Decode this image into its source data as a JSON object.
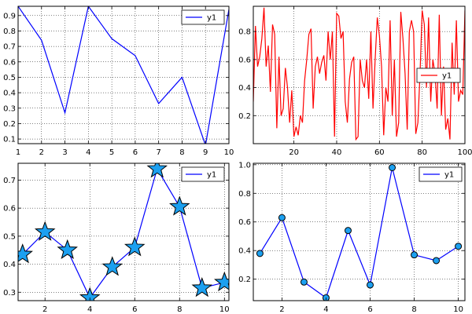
{
  "chart_data": [
    {
      "type": "line",
      "x": [
        1,
        2,
        3,
        4,
        5,
        6,
        7,
        8,
        9,
        10
      ],
      "series": [
        {
          "name": "y1",
          "color": "#0000ff",
          "marker": "none",
          "values": [
            0.96,
            0.74,
            0.27,
            0.96,
            0.75,
            0.64,
            0.33,
            0.5,
            0.06,
            0.94
          ]
        }
      ],
      "xlim": [
        1,
        10
      ],
      "ylim": [
        0.07,
        0.96
      ],
      "xticks": [
        1,
        2,
        3,
        4,
        5,
        6,
        7,
        8,
        9,
        10
      ],
      "xtick_labels": [
        "1",
        "2",
        "3",
        "4",
        "5",
        "6",
        "7",
        "8",
        "9",
        "10"
      ],
      "yticks": [
        0.1,
        0.2,
        0.3,
        0.4,
        0.5,
        0.6,
        0.7,
        0.8,
        0.9
      ],
      "ytick_labels": [
        "0.1",
        "0.2",
        "0.3",
        "0.4",
        "0.5",
        "0.6",
        "0.7",
        "0.8",
        "0.9"
      ],
      "grid": true,
      "legend": "top-right"
    },
    {
      "type": "line",
      "x": [
        1,
        2,
        3,
        4,
        5,
        6,
        7,
        8,
        9,
        10,
        11,
        12,
        13,
        14,
        15,
        16,
        17,
        18,
        19,
        20,
        21,
        22,
        23,
        24,
        25,
        26,
        27,
        28,
        29,
        30,
        31,
        32,
        33,
        34,
        35,
        36,
        37,
        38,
        39,
        40,
        41,
        42,
        43,
        44,
        45,
        46,
        47,
        48,
        49,
        50,
        51,
        52,
        53,
        54,
        55,
        56,
        57,
        58,
        59,
        60,
        61,
        62,
        63,
        64,
        65,
        66,
        67,
        68,
        69,
        70,
        71,
        72,
        73,
        74,
        75,
        76,
        77,
        78,
        79,
        80,
        81,
        82,
        83,
        84,
        85,
        86,
        87,
        88,
        89,
        90,
        91,
        92,
        93,
        94,
        95,
        96,
        97,
        98,
        99,
        100
      ],
      "series": [
        {
          "name": "y1",
          "color": "#ff0000",
          "marker": "none",
          "values": [
            0.3,
            0.84,
            0.55,
            0.62,
            0.75,
            0.97,
            0.55,
            0.7,
            0.37,
            0.85,
            0.78,
            0.11,
            0.62,
            0.2,
            0.25,
            0.54,
            0.4,
            0.15,
            0.38,
            0.05,
            0.12,
            0.06,
            0.2,
            0.15,
            0.45,
            0.6,
            0.78,
            0.82,
            0.25,
            0.55,
            0.62,
            0.5,
            0.58,
            0.63,
            0.45,
            0.8,
            0.6,
            0.8,
            0.05,
            0.93,
            0.91,
            0.75,
            0.8,
            0.3,
            0.15,
            0.46,
            0.58,
            0.62,
            0.03,
            0.05,
            0.6,
            0.45,
            0.4,
            0.6,
            0.32,
            0.8,
            0.25,
            0.6,
            0.9,
            0.77,
            0.55,
            0.06,
            0.4,
            0.3,
            0.88,
            0.2,
            0.6,
            0.05,
            0.15,
            0.94,
            0.75,
            0.5,
            0.1,
            0.8,
            0.88,
            0.8,
            0.07,
            0.15,
            0.5,
            0.95,
            0.85,
            0.4,
            0.9,
            0.3,
            0.6,
            0.5,
            0.25,
            0.92,
            0.2,
            0.55,
            0.1,
            0.18,
            0.03,
            0.72,
            0.35,
            0.88,
            0.3,
            0.38,
            0.35,
            0.95
          ]
        }
      ],
      "xlim": [
        1,
        100
      ],
      "ylim": [
        0.0,
        0.98
      ],
      "xticks": [
        20,
        40,
        60,
        80,
        100
      ],
      "xtick_labels": [
        "20",
        "40",
        "60",
        "80",
        "100"
      ],
      "yticks": [
        0.2,
        0.4,
        0.6,
        0.8
      ],
      "ytick_labels": [
        "0.2",
        "0.4",
        "0.6",
        "0.8"
      ],
      "grid": true,
      "legend": "center-right"
    },
    {
      "type": "line",
      "x": [
        1,
        2,
        3,
        4,
        5,
        6,
        7,
        8,
        9,
        10
      ],
      "series": [
        {
          "name": "y1",
          "color": "#0000ff",
          "marker": "star",
          "marker_color": "#1ca0f0",
          "values": [
            0.435,
            0.515,
            0.45,
            0.28,
            0.39,
            0.46,
            0.74,
            0.605,
            0.315,
            0.335
          ]
        }
      ],
      "xlim": [
        0.8,
        10.2
      ],
      "ylim": [
        0.27,
        0.76
      ],
      "xticks": [
        2,
        4,
        6,
        8,
        10
      ],
      "xtick_labels": [
        "2",
        "4",
        "6",
        "8",
        "10"
      ],
      "yticks": [
        0.3,
        0.4,
        0.5,
        0.6,
        0.7
      ],
      "ytick_labels": [
        "0.3",
        "0.4",
        "0.5",
        "0.6",
        "0.7"
      ],
      "grid": true,
      "legend": "top-right"
    },
    {
      "type": "line",
      "x": [
        1,
        2,
        3,
        4,
        5,
        6,
        7,
        8,
        9,
        10
      ],
      "series": [
        {
          "name": "y1",
          "color": "#0000ff",
          "marker": "circle",
          "marker_color": "#1ca0f0",
          "values": [
            0.38,
            0.63,
            0.18,
            0.07,
            0.54,
            0.16,
            0.98,
            0.37,
            0.33,
            0.43
          ]
        }
      ],
      "xlim": [
        0.7,
        10.3
      ],
      "ylim": [
        0.05,
        1.01
      ],
      "xticks": [
        2,
        4,
        6,
        8,
        10
      ],
      "xtick_labels": [
        "2",
        "4",
        "6",
        "8",
        "10"
      ],
      "yticks": [
        0.2,
        0.4,
        0.6,
        0.8,
        1.0
      ],
      "ytick_labels": [
        "0.2",
        "0.4",
        "0.6",
        "0.8",
        "1.0"
      ],
      "grid": true,
      "legend": "top-right"
    }
  ]
}
